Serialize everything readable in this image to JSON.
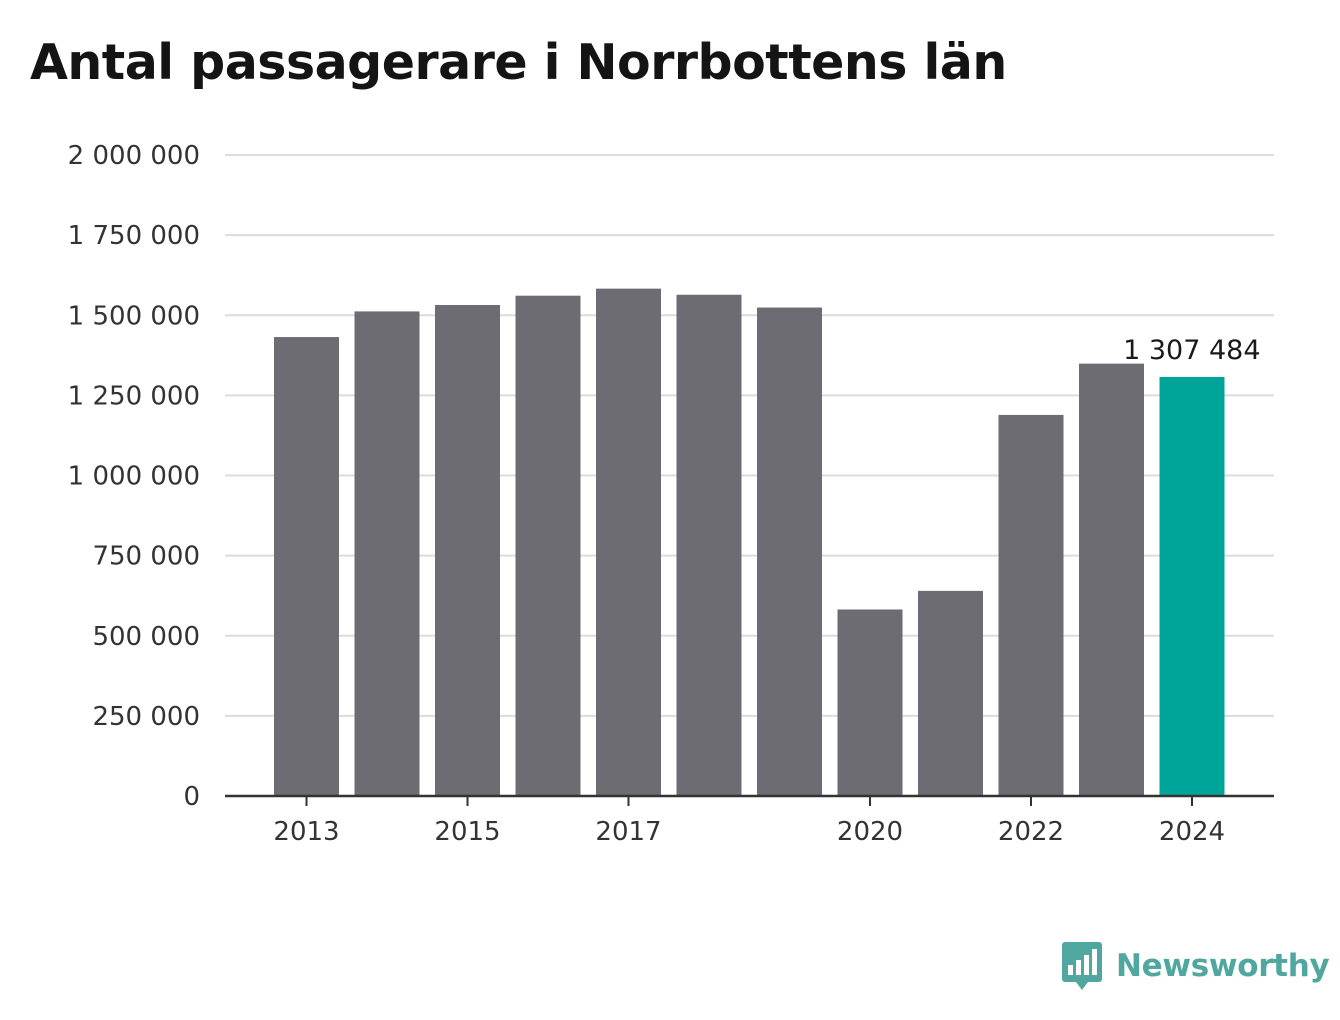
{
  "title": "Antal passagerare i Norrbottens län",
  "brand": {
    "name": "Newsworthy",
    "icon": "bar-chart-speech-bubble-icon",
    "color": "#4fa7a0"
  },
  "colors": {
    "bar": "#6d6c73",
    "highlight": "#00a599",
    "grid": "#dcdcdc",
    "axis": "#333333",
    "text": "#333333"
  },
  "chart_data": {
    "type": "bar",
    "categories": [
      "2013",
      "2014",
      "2015",
      "2016",
      "2017",
      "2018",
      "2019",
      "2020",
      "2021",
      "2022",
      "2023",
      "2024"
    ],
    "values": [
      1432000,
      1512000,
      1532000,
      1561000,
      1583000,
      1564000,
      1524000,
      582000,
      640000,
      1189000,
      1349000,
      1307484
    ],
    "highlight_index": 11,
    "title": "Antal passagerare i Norrbottens län",
    "xlabel": "",
    "ylabel": "",
    "ylim": [
      0,
      2000000
    ],
    "y_ticks": [
      0,
      250000,
      500000,
      750000,
      1000000,
      1250000,
      1500000,
      1750000,
      2000000
    ],
    "y_tick_labels": [
      "0",
      "250 000",
      "500 000",
      "750 000",
      "1 000 000",
      "1 250 000",
      "1 500 000",
      "1 750 000",
      "2 000 000"
    ],
    "x_tick_labels": [
      "2013",
      "2015",
      "2017",
      "2020",
      "2022",
      "2024"
    ],
    "data_labels": [
      {
        "category": "2024",
        "text": "1 307 484"
      }
    ],
    "grid": true,
    "legend": "none"
  }
}
